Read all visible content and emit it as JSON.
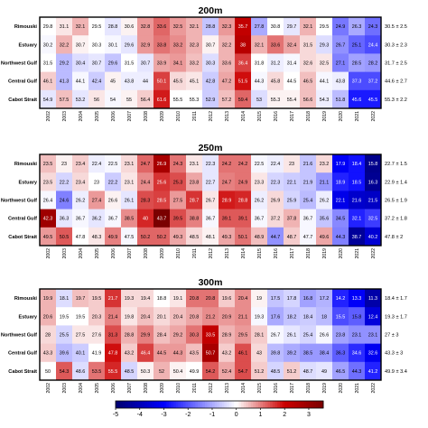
{
  "chart_data": [
    {
      "type": "heatmap",
      "title": "200m",
      "years": [
        "2002",
        "2003",
        "2004",
        "2005",
        "2006",
        "2007",
        "2008",
        "2009",
        "2010",
        "2011",
        "2012",
        "2013",
        "2014",
        "2015",
        "2016",
        "2017",
        "2018",
        "2019",
        "2020",
        "2021",
        "2022"
      ],
      "regions": [
        "Rimouski",
        "Estuary",
        "Northwest Gulf",
        "Central Gulf",
        "Cabot Strait"
      ],
      "values": [
        [
          29.8,
          31.1,
          32.1,
          29.5,
          28.8,
          30.6,
          32.8,
          33.6,
          32.5,
          32.1,
          28.8,
          32.3,
          35.7,
          27.8,
          30.8,
          29.7,
          32.1,
          29.5,
          24.9,
          26.3,
          24.3
        ],
        [
          30.2,
          32.2,
          30.7,
          30.3,
          30.1,
          29.6,
          32.9,
          33.8,
          33.2,
          32.3,
          30.7,
          32.2,
          38,
          32.1,
          33.6,
          32.4,
          31.5,
          29.3,
          26.7,
          25.1,
          24.4
        ],
        [
          31.5,
          29.2,
          30.4,
          30.7,
          29.6,
          31.5,
          30.7,
          33.9,
          34.1,
          33.2,
          30.3,
          33.6,
          36.4,
          31.8,
          31.2,
          31.4,
          32.6,
          32.5,
          27.1,
          28.5,
          28.2
        ],
        [
          46.1,
          41.3,
          44.1,
          42.4,
          45,
          43.8,
          44,
          50.1,
          45.5,
          45.1,
          42.8,
          47.2,
          51.5,
          44.3,
          45.8,
          44.5,
          46.5,
          44.1,
          43.8,
          37.3,
          37.2
        ],
        [
          54.9,
          57.5,
          53.2,
          56,
          54,
          55,
          56.4,
          61.6,
          55.5,
          55.3,
          52.9,
          57.2,
          59.4,
          53,
          55.3,
          55.4,
          56.6,
          54.3,
          51.8,
          45.6,
          45.5
        ]
      ],
      "anomalies": [
        [
          0,
          0.2,
          0.6,
          0,
          -0.3,
          0.1,
          0.8,
          1.2,
          0.8,
          0.6,
          -0.7,
          0.8,
          2.2,
          -1,
          0,
          -0.3,
          0.6,
          0,
          -1.6,
          -1,
          -1.7
        ],
        [
          -0.1,
          0.6,
          0.1,
          0,
          -0.1,
          -0.3,
          0.8,
          1.1,
          0.9,
          0.6,
          0.1,
          0.6,
          2.4,
          0.6,
          1.1,
          0.7,
          0.3,
          -0.4,
          -1.3,
          -1.8,
          -2.1
        ],
        [
          0,
          -0.8,
          -0.4,
          -0.3,
          -0.7,
          0,
          -0.3,
          0.7,
          0.8,
          0.5,
          -0.4,
          0.6,
          1.5,
          0,
          -0.2,
          -0.1,
          0.3,
          0.2,
          -1.5,
          -1.1,
          -1.2
        ],
        [
          0.4,
          -0.8,
          -0.1,
          -0.6,
          0.1,
          -0.2,
          -0.2,
          1.5,
          0.3,
          0.2,
          -0.6,
          0.7,
          1.9,
          -0.1,
          0.3,
          0,
          0.5,
          -0.1,
          -0.2,
          -2.1,
          -2.1
        ],
        [
          -0.3,
          0.5,
          -0.3,
          0.2,
          -0.1,
          0.1,
          0.4,
          1.8,
          0,
          0,
          -0.6,
          0.5,
          1.2,
          -0.4,
          0.1,
          0.1,
          0.5,
          -0.2,
          -0.8,
          -2.7,
          -2.7
        ]
      ],
      "side_labels": [
        "30.5 ± 2.5",
        "30.3 ± 2.3",
        "31.7 ± 2.5",
        "44.6 ± 2.7",
        "55.3 ± 2.2"
      ]
    },
    {
      "type": "heatmap",
      "title": "250m",
      "years": [
        "2002",
        "2003",
        "2004",
        "2005",
        "2006",
        "2007",
        "2008",
        "2009",
        "2010",
        "2011",
        "2012",
        "2013",
        "2014",
        "2015",
        "2016",
        "2017",
        "2018",
        "2019",
        "2020",
        "2021",
        "2022"
      ],
      "regions": [
        "Rimouski",
        "Estuary",
        "Northwest Gulf",
        "Central Gulf",
        "Cabot Strait"
      ],
      "values": [
        [
          23.5,
          23,
          23.4,
          22.4,
          22.5,
          23.1,
          24.7,
          26.9,
          24.3,
          23.1,
          22.3,
          24.2,
          24.2,
          22.5,
          22.4,
          23,
          21.6,
          23.2,
          17.9,
          18.4,
          15.8
        ],
        [
          23.5,
          22.2,
          23.4,
          23,
          22.2,
          23.1,
          24.4,
          25.6,
          25.3,
          23.8,
          22.7,
          24.7,
          24.9,
          23.3,
          22.3,
          22.1,
          21.9,
          21.1,
          18.9,
          18.5,
          16.3
        ],
        [
          26.4,
          24.6,
          26.2,
          27.4,
          26.6,
          26.1,
          28.3,
          28.5,
          27.5,
          28.7,
          26.7,
          28.9,
          28.8,
          26.2,
          26.9,
          25.9,
          25.4,
          26.2,
          22.1,
          21.6,
          21.5
        ],
        [
          42.3,
          36.3,
          36.7,
          36.2,
          36.7,
          38.5,
          40,
          43.7,
          39.5,
          38.8,
          36.7,
          39.1,
          39.1,
          36.7,
          37.2,
          37.8,
          36.7,
          35.6,
          34.5,
          32.1,
          32.5
        ],
        [
          49.5,
          50.5,
          47.8,
          48.3,
          49.9,
          47.5,
          50.2,
          50.2,
          49.3,
          48.5,
          48.1,
          49.3,
          50.1,
          48.9,
          44.7,
          48.7,
          47.7,
          49.6,
          44.3,
          38.7,
          40.2
        ]
      ],
      "anomalies": [
        [
          0.5,
          0.1,
          0.4,
          -0.2,
          -0.1,
          0.3,
          1.2,
          2.7,
          1.1,
          0.2,
          -0.3,
          1.1,
          1.1,
          -0.1,
          -0.2,
          0.2,
          -0.7,
          0.3,
          -3.1,
          -2.8,
          -4.6
        ],
        [
          0.3,
          -0.5,
          0.3,
          0,
          -0.6,
          0.2,
          0.9,
          1.6,
          1.4,
          0.7,
          -0.3,
          1,
          1.1,
          0.2,
          -0.5,
          -0.6,
          -0.7,
          -1.2,
          -2.6,
          -2.8,
          -4.5
        ],
        [
          -0.1,
          -1.5,
          -0.2,
          0.8,
          0.1,
          -0.3,
          1.4,
          1.5,
          0.8,
          1.6,
          0.2,
          1.8,
          1.7,
          -0.2,
          0.3,
          -0.5,
          -0.8,
          -0.2,
          -3.3,
          -3.7,
          -3.8
        ],
        [
          2.9,
          -0.3,
          -0.1,
          -0.3,
          -0.1,
          0.9,
          1.7,
          3.7,
          1.4,
          1,
          -0.1,
          1.3,
          1.3,
          -0.1,
          0.3,
          0.6,
          -0.1,
          -0.7,
          -1.4,
          -2.6,
          -2.3
        ],
        [
          0.8,
          1.3,
          0,
          0.2,
          1,
          -0.1,
          1.2,
          1.2,
          0.7,
          0.3,
          0.1,
          0.7,
          1.1,
          0.5,
          -1.3,
          0.4,
          -0.1,
          0.7,
          -1.5,
          -4.4,
          -3.6
        ]
      ],
      "side_labels": [
        "22.7 ± 1.5",
        "22.9 ± 1.4",
        "26.5 ± 1.9",
        "37.2 ± 1.8",
        "47.8 ± 2"
      ]
    },
    {
      "type": "heatmap",
      "title": "300m",
      "years": [
        "2002",
        "2003",
        "2004",
        "2005",
        "2006",
        "2007",
        "2008",
        "2009",
        "2010",
        "2011",
        "2012",
        "2013",
        "2014",
        "2015",
        "2016",
        "2017",
        "2018",
        "2019",
        "2020",
        "2021",
        "2022"
      ],
      "regions": [
        "Rimouski",
        "Estuary",
        "Northwest Gulf",
        "Central Gulf",
        "Cabot Strait"
      ],
      "values": [
        [
          19.9,
          18.1,
          19.7,
          19.5,
          21.7,
          19.3,
          19.4,
          18.8,
          19.1,
          20.8,
          20.8,
          19.6,
          20.4,
          19,
          17.5,
          17.8,
          16.8,
          17.2,
          14.2,
          13.3,
          11.3
        ],
        [
          20.6,
          19.5,
          19.5,
          20.3,
          21.4,
          19.8,
          20.4,
          20.1,
          20.4,
          20.8,
          21.2,
          20.9,
          21.1,
          19.3,
          17.6,
          18.2,
          18.4,
          18,
          15.5,
          15.8,
          12.4
        ],
        [
          28,
          25.5,
          27.5,
          27.6,
          31.3,
          28.8,
          29.9,
          28.4,
          29.2,
          30.3,
          33.5,
          28.9,
          29.5,
          28.1,
          26.7,
          26.1,
          25.4,
          26.6,
          23.8,
          23.1,
          23.1
        ],
        [
          43.3,
          39.6,
          40.1,
          41.9,
          47.8,
          43.2,
          46.4,
          44.5,
          44.3,
          43.5,
          50.7,
          43.2,
          46.1,
          43,
          39.8,
          39.2,
          38.5,
          38.4,
          36.3,
          34.6,
          32.6
        ],
        [
          50,
          54.3,
          48.6,
          53.5,
          55.5,
          48.5,
          50.3,
          52,
          50.4,
          49.9,
          54.2,
          52.4,
          54.7,
          51.2,
          48.5,
          51.2,
          48.7,
          49,
          46.5,
          44.3,
          41.2
        ]
      ],
      "anomalies": [
        [
          0.6,
          -0.4,
          0.5,
          0.4,
          1.6,
          0.3,
          0.3,
          0,
          0.2,
          1.1,
          1.1,
          0.4,
          0.9,
          0.1,
          -0.7,
          -0.5,
          -1.1,
          -0.9,
          -2.6,
          -3.1,
          -4.2
        ],
        [
          0.6,
          0,
          0,
          0.4,
          1,
          0.2,
          0.5,
          0.3,
          0.5,
          0.7,
          0.9,
          0.8,
          0.9,
          -0.1,
          -1,
          -0.7,
          -0.6,
          -0.8,
          -2.1,
          -1.9,
          -3.5
        ],
        [
          0.3,
          -0.5,
          0.2,
          0.2,
          1.4,
          0.6,
          1,
          0.5,
          0.7,
          1.1,
          2.2,
          0.6,
          0.8,
          0.4,
          -0.1,
          -0.3,
          -0.5,
          -0.1,
          -1.1,
          -1.3,
          -1.3
        ],
        [
          0.4,
          -0.8,
          -0.6,
          0,
          1.9,
          0.4,
          1.5,
          0.8,
          0.8,
          0.5,
          2.7,
          0.4,
          1.4,
          0.3,
          -0.8,
          -1,
          -1.2,
          -1.2,
          -1.9,
          -2.5,
          -3.2
        ],
        [
          0,
          1.3,
          -0.4,
          1.1,
          1.7,
          -0.5,
          0.1,
          0.6,
          0.1,
          0,
          1.3,
          0.7,
          1.4,
          0.4,
          -0.5,
          0.4,
          -0.4,
          -0.3,
          -1.1,
          -1.7,
          -2.6
        ]
      ],
      "side_labels": [
        "18.4 ± 1.7",
        "19.3 ± 1.7",
        "27 ± 3",
        "43.3 ± 3",
        "49.9 ± 3.4"
      ]
    }
  ],
  "colorbar": {
    "ticks": [
      -5,
      -4,
      -3,
      -2,
      -1,
      0,
      1,
      2,
      3
    ],
    "range": [
      -5,
      3.6
    ],
    "neg_color": "#0000ff",
    "pos_color": "#cc0000",
    "dark_color": "#7a0000",
    "neutral_color": "#ffffff"
  }
}
